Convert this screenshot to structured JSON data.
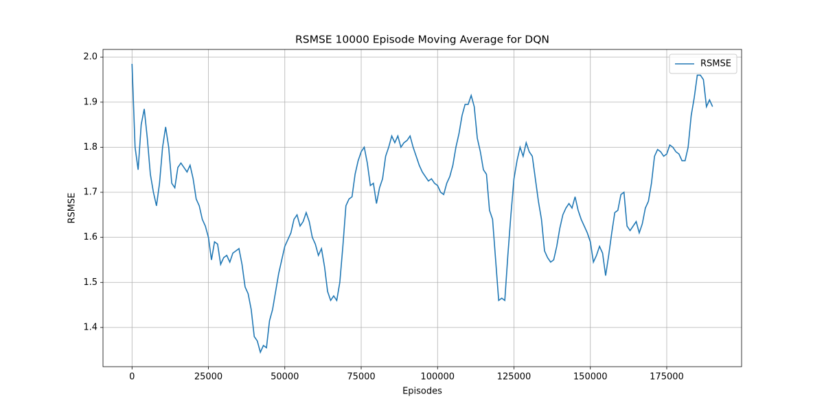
{
  "chart_data": {
    "type": "line",
    "title": "RSMSE 10000 Episode Moving Average for DQN",
    "x_label": "Episodes",
    "y_label": "RSMSE",
    "x": [
      0,
      1000,
      2000,
      3000,
      4000,
      5000,
      6000,
      7000,
      8000,
      9000,
      10000,
      11000,
      12000,
      13000,
      14000,
      15000,
      16000,
      17000,
      18000,
      19000,
      20000,
      21000,
      22000,
      23000,
      24000,
      25000,
      26000,
      27000,
      28000,
      29000,
      30000,
      31000,
      32000,
      33000,
      34000,
      35000,
      36000,
      37000,
      38000,
      39000,
      40000,
      41000,
      42000,
      43000,
      44000,
      45000,
      46000,
      47000,
      48000,
      49000,
      50000,
      51000,
      52000,
      53000,
      54000,
      55000,
      56000,
      57000,
      58000,
      59000,
      60000,
      61000,
      62000,
      63000,
      64000,
      65000,
      66000,
      67000,
      68000,
      69000,
      70000,
      71000,
      72000,
      73000,
      74000,
      75000,
      76000,
      77000,
      78000,
      79000,
      80000,
      81000,
      82000,
      83000,
      84000,
      85000,
      86000,
      87000,
      88000,
      89000,
      90000,
      91000,
      92000,
      93000,
      94000,
      95000,
      96000,
      97000,
      98000,
      99000,
      100000,
      101000,
      102000,
      103000,
      104000,
      105000,
      106000,
      107000,
      108000,
      109000,
      110000,
      111000,
      112000,
      113000,
      114000,
      115000,
      116000,
      117000,
      118000,
      119000,
      120000,
      121000,
      122000,
      123000,
      124000,
      125000,
      126000,
      127000,
      128000,
      129000,
      130000,
      131000,
      132000,
      133000,
      134000,
      135000,
      136000,
      137000,
      138000,
      139000,
      140000,
      141000,
      142000,
      143000,
      144000,
      145000,
      146000,
      147000,
      148000,
      149000,
      150000,
      151000,
      152000,
      153000,
      154000,
      155000,
      156000,
      157000,
      158000,
      159000,
      160000,
      161000,
      162000,
      163000,
      164000,
      165000,
      166000,
      167000,
      168000,
      169000,
      170000,
      171000,
      172000,
      173000,
      174000,
      175000,
      176000,
      177000,
      178000,
      179000,
      180000,
      181000,
      182000,
      183000,
      184000,
      185000,
      186000,
      187000,
      188000,
      189000,
      190000
    ],
    "series": [
      {
        "name": "RSMSE",
        "color": "#1f77b4",
        "values": [
          1.985,
          1.8,
          1.75,
          1.85,
          1.885,
          1.82,
          1.74,
          1.7,
          1.67,
          1.72,
          1.8,
          1.845,
          1.8,
          1.72,
          1.71,
          1.755,
          1.765,
          1.755,
          1.745,
          1.76,
          1.73,
          1.685,
          1.67,
          1.64,
          1.625,
          1.6,
          1.55,
          1.59,
          1.585,
          1.54,
          1.555,
          1.56,
          1.545,
          1.565,
          1.57,
          1.575,
          1.54,
          1.49,
          1.475,
          1.44,
          1.38,
          1.37,
          1.345,
          1.36,
          1.355,
          1.415,
          1.44,
          1.48,
          1.52,
          1.55,
          1.58,
          1.595,
          1.61,
          1.64,
          1.65,
          1.625,
          1.635,
          1.655,
          1.635,
          1.6,
          1.585,
          1.56,
          1.575,
          1.535,
          1.48,
          1.46,
          1.47,
          1.46,
          1.5,
          1.58,
          1.67,
          1.685,
          1.69,
          1.74,
          1.77,
          1.79,
          1.8,
          1.765,
          1.715,
          1.72,
          1.675,
          1.71,
          1.73,
          1.78,
          1.8,
          1.825,
          1.81,
          1.825,
          1.8,
          1.81,
          1.815,
          1.825,
          1.8,
          1.78,
          1.76,
          1.745,
          1.735,
          1.725,
          1.73,
          1.72,
          1.715,
          1.7,
          1.695,
          1.72,
          1.735,
          1.76,
          1.8,
          1.83,
          1.87,
          1.895,
          1.895,
          1.915,
          1.89,
          1.82,
          1.79,
          1.75,
          1.74,
          1.66,
          1.64,
          1.55,
          1.46,
          1.465,
          1.46,
          1.56,
          1.65,
          1.73,
          1.77,
          1.8,
          1.78,
          1.81,
          1.79,
          1.78,
          1.73,
          1.68,
          1.64,
          1.57,
          1.555,
          1.545,
          1.55,
          1.58,
          1.62,
          1.65,
          1.665,
          1.675,
          1.665,
          1.69,
          1.66,
          1.64,
          1.625,
          1.61,
          1.59,
          1.545,
          1.56,
          1.58,
          1.565,
          1.515,
          1.56,
          1.61,
          1.655,
          1.66,
          1.695,
          1.7,
          1.625,
          1.615,
          1.625,
          1.635,
          1.61,
          1.63,
          1.665,
          1.68,
          1.72,
          1.78,
          1.795,
          1.79,
          1.78,
          1.785,
          1.805,
          1.8,
          1.79,
          1.785,
          1.77,
          1.77,
          1.8,
          1.87,
          1.91,
          1.96,
          1.96,
          1.95,
          1.89,
          1.905,
          1.89
        ]
      }
    ],
    "xlim": [
      -9500,
      199500
    ],
    "xticks": [
      0,
      25000,
      50000,
      75000,
      100000,
      125000,
      150000,
      175000
    ],
    "ylim": [
      1.313,
      2.017
    ],
    "yticks": [
      {
        "value": 1.4,
        "label": "1.4"
      },
      {
        "value": 1.5,
        "label": "1.5"
      },
      {
        "value": 1.6,
        "label": "1.6"
      },
      {
        "value": 1.7,
        "label": "1.7"
      },
      {
        "value": 1.8,
        "label": "1.8"
      },
      {
        "value": 1.9,
        "label": "1.9"
      },
      {
        "value": 2.0,
        "label": "2.0"
      }
    ],
    "grid": true,
    "legend": "upper right"
  }
}
